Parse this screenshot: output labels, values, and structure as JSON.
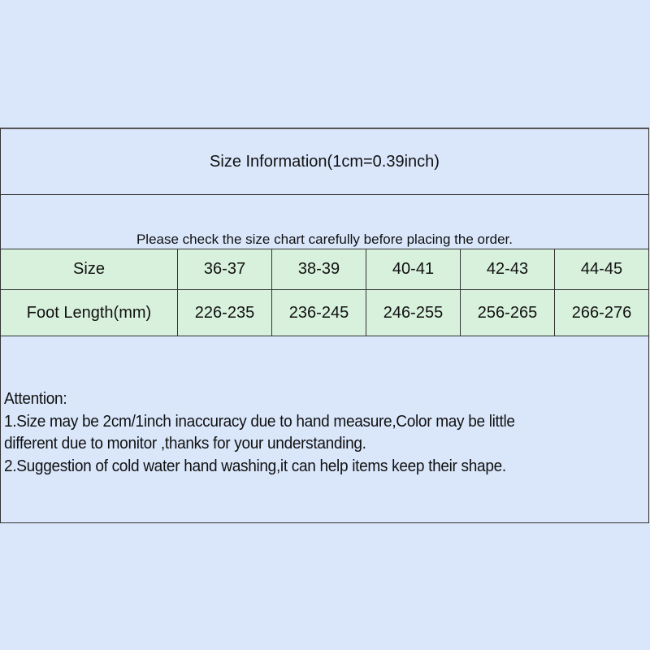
{
  "title": "Size Information(1cm=0.39inch)",
  "note": "Please check the size chart carefully before placing the order.",
  "table": {
    "rows": [
      {
        "label": "Size",
        "values": [
          "36-37",
          "38-39",
          "40-41",
          "42-43",
          "44-45"
        ]
      },
      {
        "label": "Foot Length(mm)",
        "values": [
          "226-235",
          "236-245",
          "246-255",
          "256-265",
          "266-276"
        ]
      }
    ]
  },
  "attention": {
    "heading": "Attention:",
    "line1": "1.Size may be 2cm/1inch inaccuracy due to hand measure,Color may be little",
    "line2": "different due to monitor ,thanks for your understanding.",
    "line3": "2.Suggestion of cold water hand washing,it can help items keep their shape."
  },
  "colors": {
    "background": "#dae7fb",
    "table_fill": "#d8f1dc"
  }
}
